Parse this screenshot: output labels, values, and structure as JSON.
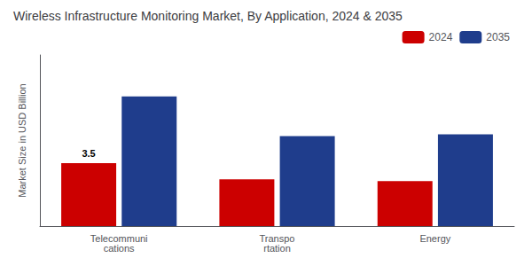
{
  "chart_data": {
    "type": "bar",
    "title": "Wireless Infrastructure Monitoring Market, By Application, 2024 & 2035",
    "y_label": "Market Size in USD Billion",
    "categories": [
      "Telecommuni\ncations",
      "Transpo\nrtation",
      "Energy"
    ],
    "series": [
      {
        "name": "2024",
        "color": "#cc0000",
        "values": [
          3.5,
          2.6,
          2.5
        ]
      },
      {
        "name": "2035",
        "color": "#1f3d8c",
        "values": [
          7.2,
          5.0,
          5.1
        ]
      }
    ],
    "ylim": [
      0,
      9.5
    ],
    "tick_labels": "x",
    "grid": false,
    "legend": "upper right",
    "annotations": [
      {
        "text": "3.5",
        "category": "Telecommuni\ncations",
        "series": "2024",
        "y": 3.5
      }
    ]
  }
}
